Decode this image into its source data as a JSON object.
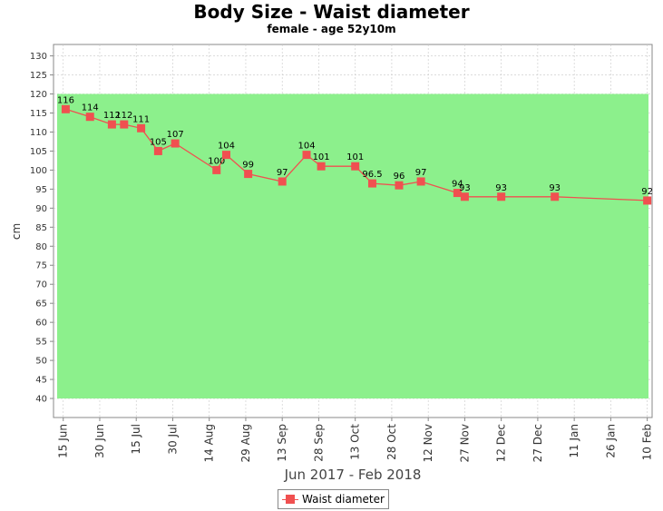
{
  "colors": {
    "normal_range_band": "#8cf08c",
    "series_line": "#f05050",
    "series_marker": "#f05050",
    "plot_background": "#ffffff",
    "gridline": "#c8c8c8"
  },
  "chart_data": {
    "type": "line",
    "title": "Body Size - Waist diameter",
    "subtitle": "female - age 52y10m",
    "xlabel": "Jun 2017 - Feb 2018",
    "ylabel": "cm",
    "ylim": [
      35,
      133
    ],
    "xlim": [
      "2017-06-11",
      "2018-02-12"
    ],
    "grid": true,
    "legend_position": "bottom-center",
    "yticks": [
      40,
      45,
      50,
      55,
      60,
      65,
      70,
      75,
      80,
      85,
      90,
      95,
      100,
      105,
      110,
      115,
      120,
      125,
      130
    ],
    "xticks": [
      {
        "date": "2017-06-15",
        "label": "15 Jun"
      },
      {
        "date": "2017-06-30",
        "label": "30 Jun"
      },
      {
        "date": "2017-07-15",
        "label": "15 Jul"
      },
      {
        "date": "2017-07-30",
        "label": "30 Jul"
      },
      {
        "date": "2017-08-14",
        "label": "14 Aug"
      },
      {
        "date": "2017-08-29",
        "label": "29 Aug"
      },
      {
        "date": "2017-09-13",
        "label": "13 Sep"
      },
      {
        "date": "2017-09-28",
        "label": "28 Sep"
      },
      {
        "date": "2017-10-13",
        "label": "13 Oct"
      },
      {
        "date": "2017-10-28",
        "label": "28 Oct"
      },
      {
        "date": "2017-11-12",
        "label": "12 Nov"
      },
      {
        "date": "2017-11-27",
        "label": "27 Nov"
      },
      {
        "date": "2017-12-12",
        "label": "12 Dec"
      },
      {
        "date": "2017-12-27",
        "label": "27 Dec"
      },
      {
        "date": "2018-01-11",
        "label": "11 Jan"
      },
      {
        "date": "2018-01-26",
        "label": "26 Jan"
      },
      {
        "date": "2018-02-10",
        "label": "10 Feb"
      }
    ],
    "normal_range": {
      "low": 40,
      "high": 120
    },
    "series": [
      {
        "name": "Waist diameter",
        "points": [
          {
            "date": "2017-06-16",
            "value": 116,
            "label": "116"
          },
          {
            "date": "2017-06-26",
            "value": 114,
            "label": "114"
          },
          {
            "date": "2017-07-05",
            "value": 112,
            "label": "112"
          },
          {
            "date": "2017-07-10",
            "value": 112,
            "label": "112"
          },
          {
            "date": "2017-07-17",
            "value": 111,
            "label": "111"
          },
          {
            "date": "2017-07-24",
            "value": 105,
            "label": "105"
          },
          {
            "date": "2017-07-31",
            "value": 107,
            "label": "107"
          },
          {
            "date": "2017-08-17",
            "value": 100,
            "label": "100"
          },
          {
            "date": "2017-08-21",
            "value": 104,
            "label": "104"
          },
          {
            "date": "2017-08-30",
            "value": 99,
            "label": "99"
          },
          {
            "date": "2017-09-13",
            "value": 97,
            "label": "97"
          },
          {
            "date": "2017-09-23",
            "value": 104,
            "label": "104"
          },
          {
            "date": "2017-09-29",
            "value": 101,
            "label": "101"
          },
          {
            "date": "2017-10-13",
            "value": 101,
            "label": "101"
          },
          {
            "date": "2017-10-20",
            "value": 96.5,
            "label": "96.5"
          },
          {
            "date": "2017-10-31",
            "value": 96,
            "label": "96"
          },
          {
            "date": "2017-11-09",
            "value": 97,
            "label": "97"
          },
          {
            "date": "2017-11-24",
            "value": 94,
            "label": "94"
          },
          {
            "date": "2017-11-27",
            "value": 93,
            "label": "93"
          },
          {
            "date": "2017-12-12",
            "value": 93,
            "label": "93"
          },
          {
            "date": "2018-01-03",
            "value": 93,
            "label": "93"
          },
          {
            "date": "2018-02-10",
            "value": 92,
            "label": "92"
          }
        ]
      }
    ]
  }
}
